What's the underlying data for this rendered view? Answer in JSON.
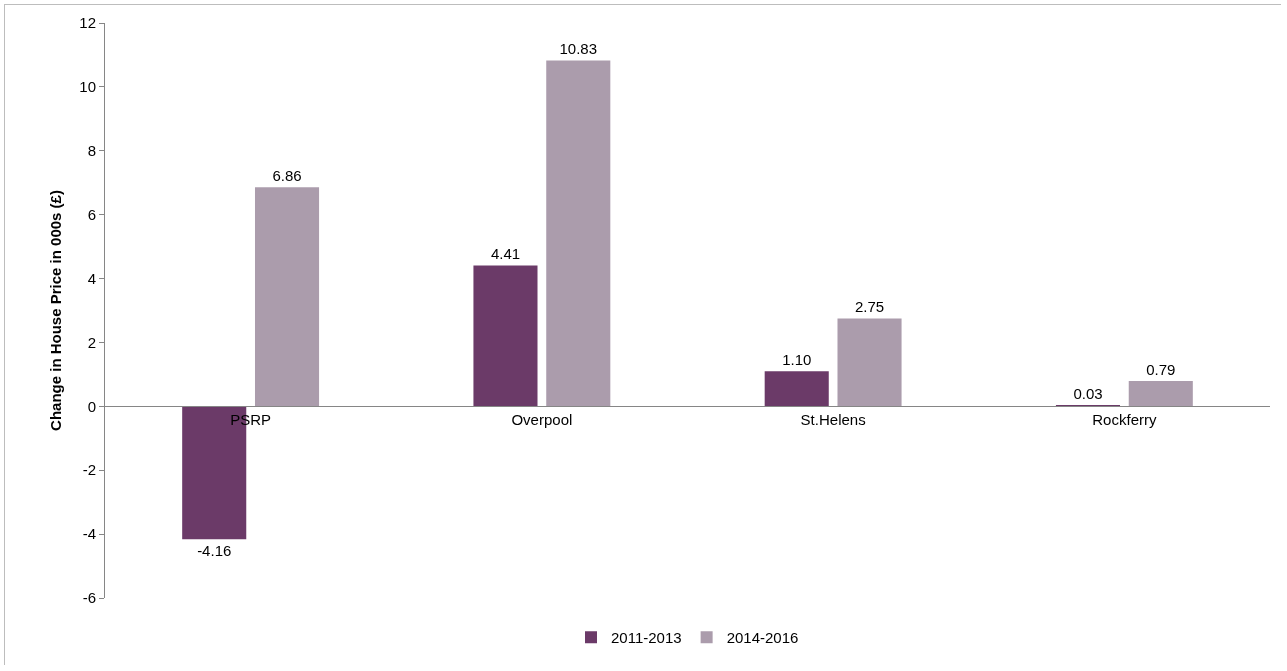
{
  "chart_data": {
    "type": "bar",
    "ylabel": "Change in House Price in 000s (£)",
    "categories": [
      "PSRP",
      "Overpool",
      "St.Helens",
      "Rockferry"
    ],
    "series": [
      {
        "name": "2011-2013",
        "color": "#6b3a68",
        "values": [
          -4.16,
          4.41,
          1.1,
          0.03
        ],
        "value_labels": [
          "-4.16",
          "4.41",
          "1.10",
          "0.03"
        ]
      },
      {
        "name": "2014-2016",
        "color": "#ab9cac",
        "values": [
          6.86,
          10.83,
          2.75,
          0.79
        ],
        "value_labels": [
          "6.86",
          "10.83",
          "2.75",
          "0.79"
        ]
      }
    ],
    "ylim": [
      -6,
      12
    ],
    "yticks": [
      -6,
      -4,
      -2,
      0,
      2,
      4,
      6,
      8,
      10,
      12
    ],
    "grid": false,
    "legend": "bottom"
  }
}
